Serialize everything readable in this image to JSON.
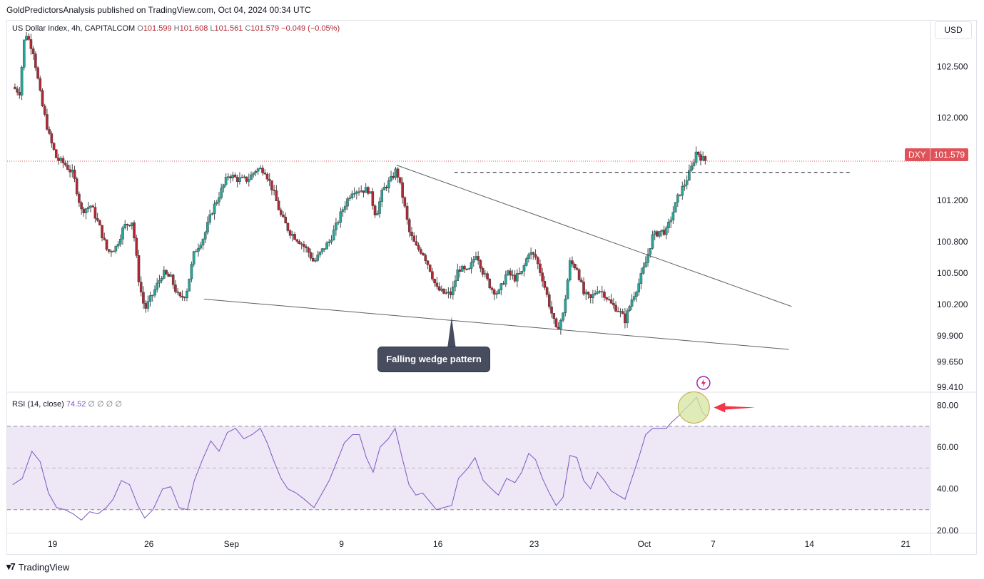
{
  "header": {
    "publisher_line": "GoldPredictorsAnalysis published on TradingView.com, Oct 04, 2024 00:34 UTC"
  },
  "legend": {
    "symbol_line": "US Dollar Index, 4h, CAPITALCOM",
    "open_label": "O",
    "open": "101.599",
    "high_label": "H",
    "high": "101.608",
    "low_label": "L",
    "low": "101.561",
    "close_label": "C",
    "close": "101.579",
    "change": "−0.049 (−0.05%)"
  },
  "rsi_legend": {
    "label": "RSI (14, close)",
    "value": "74.52",
    "extras": "∅ ∅ ∅ ∅"
  },
  "currency_button": "USD",
  "price_tag": {
    "symbol": "DXY",
    "price": "101.579"
  },
  "annotation": {
    "text": "Falling wedge pattern"
  },
  "footer": {
    "brand": "TradingView",
    "logo_icon": "tradingview-logo-icon"
  },
  "colors": {
    "up": "#26a69a",
    "down": "#b22833",
    "rsi_line": "#7e57c2",
    "rsi_band": "#ede7f6",
    "price_line": "#e0525a",
    "arrow": "#f23645",
    "trendline": "#5d606b"
  },
  "chart_data": [
    {
      "type": "candlestick",
      "series_name": "US Dollar Index, 4h, CAPITALCOM",
      "x_unit": "days since Aug 16, 2024 (4h bars)",
      "x_ticks": [
        {
          "label": "19",
          "x": 3
        },
        {
          "label": "26",
          "x": 10
        },
        {
          "label": "Sep",
          "x": 16
        },
        {
          "label": "9",
          "x": 24
        },
        {
          "label": "16",
          "x": 31
        },
        {
          "label": "23",
          "x": 38
        },
        {
          "label": "Oct",
          "x": 46
        },
        {
          "label": "7",
          "x": 51
        },
        {
          "label": "14",
          "x": 58
        },
        {
          "label": "21",
          "x": 65
        }
      ],
      "xlim": [
        -0.3,
        66.8
      ],
      "y_ticks": [
        102.5,
        102.0,
        101.2,
        100.8,
        100.5,
        100.2,
        99.9,
        99.65,
        99.41
      ],
      "y_tick_labels": [
        "102.500",
        "102.000",
        "101.200",
        "100.800",
        "100.500",
        "100.200",
        "99.900",
        "99.650",
        "99.410"
      ],
      "y_scale": "log",
      "ylim": [
        99.37,
        102.95
      ],
      "current_price": 101.579,
      "anchors": [
        [
          0.1,
          102.3
        ],
        [
          0.6,
          102.25
        ],
        [
          1.0,
          102.85
        ],
        [
          1.6,
          102.65
        ],
        [
          2.2,
          102.15
        ],
        [
          2.8,
          101.8
        ],
        [
          3.3,
          101.6
        ],
        [
          3.9,
          101.55
        ],
        [
          4.5,
          101.45
        ],
        [
          5.1,
          101.1
        ],
        [
          5.8,
          101.15
        ],
        [
          6.4,
          100.95
        ],
        [
          7.0,
          100.7
        ],
        [
          7.6,
          100.75
        ],
        [
          8.2,
          100.95
        ],
        [
          8.8,
          101.0
        ],
        [
          9.3,
          100.4
        ],
        [
          9.7,
          100.15
        ],
        [
          10.3,
          100.3
        ],
        [
          11.0,
          100.5
        ],
        [
          11.6,
          100.45
        ],
        [
          12.2,
          100.25
        ],
        [
          12.7,
          100.3
        ],
        [
          13.3,
          100.7
        ],
        [
          14.0,
          100.85
        ],
        [
          14.6,
          101.1
        ],
        [
          15.1,
          101.25
        ],
        [
          15.8,
          101.45
        ],
        [
          16.5,
          101.4
        ],
        [
          17.2,
          101.4
        ],
        [
          17.8,
          101.5
        ],
        [
          18.4,
          101.5
        ],
        [
          19.0,
          101.3
        ],
        [
          19.6,
          101.05
        ],
        [
          20.2,
          100.9
        ],
        [
          21.0,
          100.8
        ],
        [
          21.6,
          100.7
        ],
        [
          22.0,
          100.6
        ],
        [
          22.5,
          100.7
        ],
        [
          23.1,
          100.8
        ],
        [
          23.6,
          100.95
        ],
        [
          24.2,
          101.15
        ],
        [
          24.8,
          101.3
        ],
        [
          25.4,
          101.3
        ],
        [
          26.0,
          101.3
        ],
        [
          26.5,
          101.05
        ],
        [
          27.0,
          101.3
        ],
        [
          27.6,
          101.4
        ],
        [
          28.0,
          101.5
        ],
        [
          28.5,
          101.2
        ],
        [
          28.9,
          100.9
        ],
        [
          29.4,
          100.75
        ],
        [
          29.9,
          100.7
        ],
        [
          30.4,
          100.55
        ],
        [
          30.9,
          100.35
        ],
        [
          31.5,
          100.3
        ],
        [
          32.0,
          100.3
        ],
        [
          32.5,
          100.55
        ],
        [
          33.2,
          100.5
        ],
        [
          33.8,
          100.7
        ],
        [
          34.3,
          100.5
        ],
        [
          34.9,
          100.35
        ],
        [
          35.4,
          100.3
        ],
        [
          36.0,
          100.5
        ],
        [
          36.6,
          100.45
        ],
        [
          37.1,
          100.5
        ],
        [
          37.6,
          100.7
        ],
        [
          38.1,
          100.65
        ],
        [
          38.6,
          100.45
        ],
        [
          39.1,
          100.2
        ],
        [
          39.6,
          99.95
        ],
        [
          40.1,
          100.1
        ],
        [
          40.6,
          100.6
        ],
        [
          41.1,
          100.55
        ],
        [
          41.6,
          100.3
        ],
        [
          42.1,
          100.25
        ],
        [
          42.6,
          100.35
        ],
        [
          43.1,
          100.3
        ],
        [
          43.6,
          100.2
        ],
        [
          44.1,
          100.15
        ],
        [
          44.6,
          100.05
        ],
        [
          45.1,
          100.25
        ],
        [
          45.6,
          100.4
        ],
        [
          46.1,
          100.6
        ],
        [
          46.6,
          100.85
        ],
        [
          47.1,
          100.9
        ],
        [
          47.6,
          100.9
        ],
        [
          48.0,
          101.05
        ],
        [
          48.5,
          101.25
        ],
        [
          48.9,
          101.35
        ],
        [
          49.4,
          101.5
        ],
        [
          49.8,
          101.68
        ],
        [
          50.2,
          101.6
        ],
        [
          50.5,
          101.58
        ]
      ],
      "trendlines": [
        {
          "name": "wedge-upper",
          "from": [
            28.0,
            101.54
          ],
          "to": [
            56.7,
            100.18
          ]
        },
        {
          "name": "wedge-lower",
          "from": [
            14.0,
            100.25
          ],
          "to": [
            56.5,
            99.77
          ]
        },
        {
          "name": "resistance-level",
          "style": "dashed",
          "from": [
            32.2,
            101.47
          ],
          "to": [
            61.0,
            101.47
          ]
        }
      ]
    },
    {
      "type": "line",
      "series_name": "RSI (14, close)",
      "current_value": 74.52,
      "y_ticks": [
        80,
        60,
        40,
        20
      ],
      "y_tick_labels": [
        "80.00",
        "60.00",
        "40.00",
        "20.00"
      ],
      "ylim": [
        19,
        86
      ],
      "band": [
        30,
        70
      ],
      "midline": 50,
      "points": [
        [
          0.1,
          42
        ],
        [
          0.8,
          45
        ],
        [
          1.5,
          58
        ],
        [
          2.1,
          53
        ],
        [
          2.7,
          38
        ],
        [
          3.3,
          31
        ],
        [
          3.9,
          30
        ],
        [
          4.5,
          28
        ],
        [
          5.1,
          25
        ],
        [
          5.7,
          29
        ],
        [
          6.3,
          28
        ],
        [
          6.9,
          31
        ],
        [
          7.4,
          35
        ],
        [
          8.0,
          44
        ],
        [
          8.6,
          42
        ],
        [
          9.2,
          32
        ],
        [
          9.7,
          26
        ],
        [
          10.3,
          30
        ],
        [
          11.0,
          40
        ],
        [
          11.6,
          41
        ],
        [
          12.2,
          31
        ],
        [
          12.8,
          30
        ],
        [
          13.3,
          44
        ],
        [
          13.9,
          54
        ],
        [
          14.5,
          63
        ],
        [
          15.1,
          58
        ],
        [
          15.7,
          67
        ],
        [
          16.3,
          69
        ],
        [
          16.9,
          64
        ],
        [
          17.5,
          66
        ],
        [
          18.1,
          69
        ],
        [
          18.6,
          62
        ],
        [
          19.1,
          53
        ],
        [
          19.6,
          45
        ],
        [
          20.1,
          40
        ],
        [
          20.7,
          38
        ],
        [
          21.3,
          35
        ],
        [
          22.0,
          31
        ],
        [
          22.6,
          38
        ],
        [
          23.1,
          44
        ],
        [
          23.6,
          52
        ],
        [
          24.2,
          62
        ],
        [
          24.8,
          66
        ],
        [
          25.3,
          66
        ],
        [
          25.8,
          55
        ],
        [
          26.3,
          48
        ],
        [
          26.8,
          60
        ],
        [
          27.4,
          64
        ],
        [
          27.9,
          69
        ],
        [
          28.4,
          55
        ],
        [
          28.9,
          42
        ],
        [
          29.4,
          37
        ],
        [
          29.9,
          38
        ],
        [
          30.4,
          34
        ],
        [
          30.9,
          30
        ],
        [
          31.4,
          31
        ],
        [
          32.0,
          32
        ],
        [
          32.5,
          45
        ],
        [
          33.2,
          50
        ],
        [
          33.7,
          55
        ],
        [
          34.3,
          44
        ],
        [
          34.9,
          40
        ],
        [
          35.4,
          37
        ],
        [
          36.0,
          45
        ],
        [
          36.6,
          43
        ],
        [
          37.1,
          48
        ],
        [
          37.6,
          57
        ],
        [
          38.1,
          54
        ],
        [
          38.6,
          45
        ],
        [
          39.1,
          38
        ],
        [
          39.6,
          32
        ],
        [
          40.1,
          36
        ],
        [
          40.6,
          56
        ],
        [
          41.1,
          55
        ],
        [
          41.6,
          44
        ],
        [
          42.1,
          40
        ],
        [
          42.6,
          48
        ],
        [
          43.1,
          44
        ],
        [
          43.6,
          39
        ],
        [
          44.1,
          37
        ],
        [
          44.6,
          35
        ],
        [
          45.1,
          45
        ],
        [
          45.6,
          55
        ],
        [
          46.1,
          66
        ],
        [
          46.6,
          69
        ],
        [
          47.1,
          69
        ],
        [
          47.6,
          69
        ],
        [
          48.0,
          72
        ],
        [
          48.5,
          75
        ],
        [
          48.9,
          78
        ],
        [
          49.4,
          81
        ],
        [
          49.8,
          84
        ],
        [
          50.2,
          77
        ],
        [
          50.5,
          74.5
        ]
      ]
    }
  ]
}
